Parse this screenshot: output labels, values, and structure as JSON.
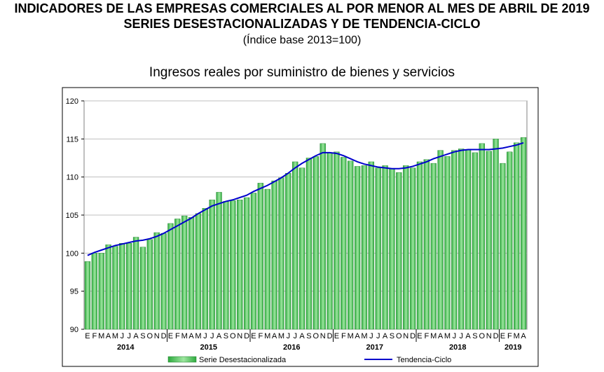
{
  "header": {
    "title_line1": "INDICADORES DE LAS EMPRESAS COMERCIALES AL POR MENOR AL MES DE ABRIL DE 2019",
    "title_line2": "SERIES DESESTACIONALIZADAS Y DE TENDENCIA-CICLO",
    "title_line3": "(Índice base 2013=100)"
  },
  "colors": {
    "bar": "#2eaa3e",
    "bar_highlight": "#9ee6a0",
    "trend": "#0000cc",
    "frame": "#000000"
  },
  "chart_data": {
    "type": "bar",
    "title": "Ingresos reales por suministro de bienes y servicios",
    "ylim": [
      90,
      120
    ],
    "yticks": [
      90,
      95,
      100,
      105,
      110,
      115,
      120
    ],
    "grid": true,
    "legend_position": "bottom",
    "month_labels": [
      "E",
      "F",
      "M",
      "A",
      "M",
      "J",
      "J",
      "A",
      "S",
      "O",
      "N",
      "D",
      "E",
      "F",
      "M",
      "A",
      "M",
      "J",
      "J",
      "A",
      "S",
      "O",
      "N",
      "D",
      "E",
      "F",
      "M",
      "A",
      "M",
      "J",
      "J",
      "A",
      "S",
      "O",
      "N",
      "D",
      "E",
      "F",
      "M",
      "A",
      "M",
      "J",
      "J",
      "A",
      "S",
      "O",
      "N",
      "D",
      "E",
      "F",
      "M",
      "A",
      "M",
      "J",
      "J",
      "A",
      "S",
      "O",
      "N",
      "D",
      "E",
      "F",
      "M",
      "A"
    ],
    "years": [
      {
        "label": "2014",
        "start": 0,
        "count": 12
      },
      {
        "label": "2015",
        "start": 12,
        "count": 12
      },
      {
        "label": "2016",
        "start": 24,
        "count": 12
      },
      {
        "label": "2017",
        "start": 36,
        "count": 12
      },
      {
        "label": "2018",
        "start": 48,
        "count": 12
      },
      {
        "label": "2019",
        "start": 60,
        "count": 4
      }
    ],
    "series": [
      {
        "name": "Serie Desestacionalizada",
        "kind": "bar",
        "values": [
          98.9,
          100.0,
          100.0,
          101.1,
          100.9,
          101.3,
          101.3,
          102.1,
          100.8,
          101.8,
          102.7,
          102.6,
          103.9,
          104.5,
          104.9,
          104.7,
          105.2,
          105.9,
          107.0,
          108.0,
          106.8,
          106.9,
          107.0,
          107.3,
          107.9,
          109.2,
          108.4,
          109.5,
          109.9,
          110.5,
          112.0,
          111.2,
          112.5,
          112.7,
          114.4,
          113.2,
          113.3,
          112.6,
          112.1,
          111.4,
          111.5,
          112.0,
          111.2,
          111.5,
          111.1,
          110.6,
          111.5,
          111.2,
          112.0,
          112.3,
          111.8,
          113.5,
          112.7,
          113.5,
          113.7,
          113.6,
          113.2,
          114.4,
          113.4,
          115.0,
          111.8,
          113.3,
          114.5,
          115.2
        ]
      },
      {
        "name": "Tendencia-Ciclo",
        "kind": "line",
        "values": [
          99.7,
          100.1,
          100.4,
          100.7,
          101.0,
          101.2,
          101.4,
          101.6,
          101.7,
          101.9,
          102.2,
          102.6,
          103.1,
          103.6,
          104.1,
          104.6,
          105.2,
          105.7,
          106.2,
          106.5,
          106.8,
          107.0,
          107.3,
          107.6,
          108.1,
          108.5,
          108.9,
          109.4,
          109.9,
          110.5,
          111.2,
          111.8,
          112.3,
          112.8,
          113.2,
          113.2,
          113.1,
          112.8,
          112.4,
          112.0,
          111.7,
          111.5,
          111.3,
          111.2,
          111.1,
          111.1,
          111.2,
          111.4,
          111.7,
          112.0,
          112.4,
          112.7,
          113.0,
          113.3,
          113.5,
          113.6,
          113.6,
          113.6,
          113.6,
          113.7,
          113.8,
          114.0,
          114.2,
          114.5
        ]
      }
    ]
  }
}
